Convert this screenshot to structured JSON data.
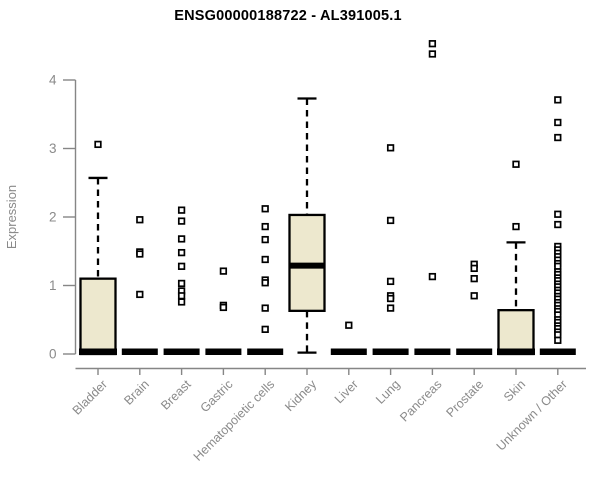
{
  "title": "ENSG00000188722 - AL391005.1",
  "colors": {
    "background": "#ffffff",
    "box_fill": "#ede8ce",
    "box_stroke": "#000000",
    "median": "#000000",
    "outlier_fill": "#ffffff",
    "axis": "#868686",
    "tick_label": "#8a8a8a",
    "title": "#000000"
  },
  "chart_data": {
    "type": "boxplot",
    "title": "ENSG00000188722 - AL391005.1",
    "xlabel": "",
    "ylabel": "Expression",
    "ylim": [
      0,
      4
    ],
    "yticks": [
      0,
      1,
      2,
      3,
      4
    ],
    "grid": false,
    "legend": false,
    "categories": [
      "Bladder",
      "Brain",
      "Breast",
      "Gastric",
      "Hematopoietic cells",
      "Kidney",
      "Liver",
      "Lung",
      "Pancreas",
      "Prostate",
      "Skin",
      "Unknown / Other"
    ],
    "series": [
      {
        "name": "Bladder",
        "q1": 0,
        "median": 0,
        "q3": 1.1,
        "whisker_low": 0,
        "whisker_high": 2.57,
        "outliers": [
          3.06
        ]
      },
      {
        "name": "Brain",
        "q1": 0,
        "median": 0,
        "q3": 0,
        "whisker_low": 0,
        "whisker_high": 0,
        "outliers": [
          1.96,
          1.49,
          1.46,
          0.87
        ]
      },
      {
        "name": "Breast",
        "q1": 0,
        "median": 0,
        "q3": 0,
        "whisker_low": 0,
        "whisker_high": 0,
        "outliers": [
          2.1,
          1.94,
          1.68,
          1.48,
          1.28,
          1.03,
          0.92,
          0.85,
          0.76
        ]
      },
      {
        "name": "Gastric",
        "q1": 0,
        "median": 0,
        "q3": 0,
        "whisker_low": 0,
        "whisker_high": 0,
        "outliers": [
          1.21,
          0.71,
          0.68
        ]
      },
      {
        "name": "Hematopoietic cells",
        "q1": 0,
        "median": 0,
        "q3": 0,
        "whisker_low": 0,
        "whisker_high": 0,
        "outliers": [
          2.12,
          1.86,
          1.67,
          1.38,
          1.08,
          1.04,
          0.67,
          0.36
        ]
      },
      {
        "name": "Kidney",
        "q1": 0.63,
        "median": 1.29,
        "q3": 2.03,
        "whisker_low": 0.02,
        "whisker_high": 3.73,
        "outliers": []
      },
      {
        "name": "Liver",
        "q1": 0,
        "median": 0,
        "q3": 0,
        "whisker_low": 0,
        "whisker_high": 0,
        "outliers": [
          0.42
        ]
      },
      {
        "name": "Lung",
        "q1": 0,
        "median": 0,
        "q3": 0,
        "whisker_low": 0,
        "whisker_high": 0,
        "outliers": [
          3.01,
          1.95,
          1.06,
          0.85,
          0.81,
          0.67
        ]
      },
      {
        "name": "Pancreas",
        "q1": 0,
        "median": 0,
        "q3": 0,
        "whisker_low": 0,
        "whisker_high": 0,
        "outliers": [
          4.53,
          4.38,
          1.13
        ]
      },
      {
        "name": "Prostate",
        "q1": 0,
        "median": 0,
        "q3": 0,
        "whisker_low": 0,
        "whisker_high": 0,
        "outliers": [
          1.31,
          1.25,
          1.1,
          0.85
        ]
      },
      {
        "name": "Skin",
        "q1": 0,
        "median": 0,
        "q3": 0.64,
        "whisker_low": 0,
        "whisker_high": 1.63,
        "outliers": [
          2.77,
          1.86
        ]
      },
      {
        "name": "Unknown / Other",
        "q1": 0,
        "median": 0,
        "q3": 0,
        "whisker_low": 0,
        "whisker_high": 0,
        "outliers": [
          3.71,
          3.38,
          3.16,
          2.04,
          1.89,
          1.57,
          1.52,
          1.47,
          1.42,
          1.37,
          1.32,
          1.28,
          1.2,
          1.16,
          1.11,
          1.07,
          1.02,
          0.98,
          0.93,
          0.89,
          0.84,
          0.8,
          0.75,
          0.71,
          0.66,
          0.62,
          0.57,
          0.5,
          0.46,
          0.41,
          0.37,
          0.32,
          0.28,
          0.2
        ]
      }
    ]
  }
}
